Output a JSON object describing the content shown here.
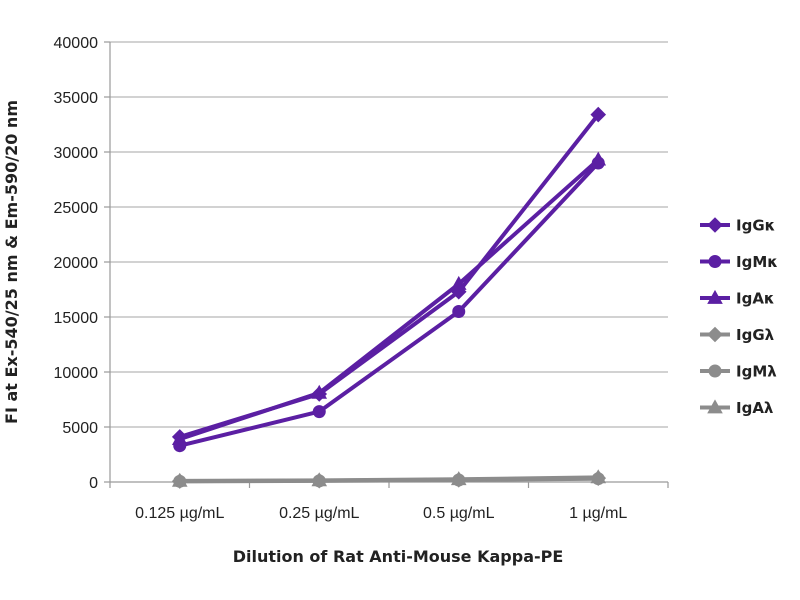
{
  "chart_data": {
    "type": "line",
    "title": "",
    "xlabel": "Dilution of Rat Anti-Mouse Kappa-PE",
    "ylabel": "FI at Ex-540/25 nm & Em-590/20 nm",
    "categories": [
      "0.125 µg/mL",
      "0.25 µg/mL",
      "0.5 µg/mL",
      "1 µg/mL"
    ],
    "ylim": [
      0,
      40000
    ],
    "yticks": [
      0,
      5000,
      10000,
      15000,
      20000,
      25000,
      30000,
      35000,
      40000
    ],
    "grid": true,
    "legend_position": "right",
    "series": [
      {
        "name": "IgGκ",
        "marker": "diamond",
        "color": "#5b1fa3",
        "values": [
          4100,
          8000,
          17300,
          33400
        ]
      },
      {
        "name": "IgMκ",
        "marker": "circle",
        "color": "#5b1fa3",
        "values": [
          3300,
          6400,
          15500,
          29000
        ]
      },
      {
        "name": "IgAκ",
        "marker": "triangle",
        "color": "#5b1fa3",
        "values": [
          3900,
          8100,
          18000,
          29300
        ]
      },
      {
        "name": "IgGλ",
        "marker": "diamond",
        "color": "#8c8c8c",
        "values": [
          80,
          120,
          200,
          350
        ]
      },
      {
        "name": "IgMλ",
        "marker": "circle",
        "color": "#8c8c8c",
        "values": [
          60,
          100,
          180,
          300
        ]
      },
      {
        "name": "IgAλ",
        "marker": "triangle",
        "color": "#8c8c8c",
        "values": [
          100,
          150,
          250,
          420
        ]
      }
    ]
  }
}
